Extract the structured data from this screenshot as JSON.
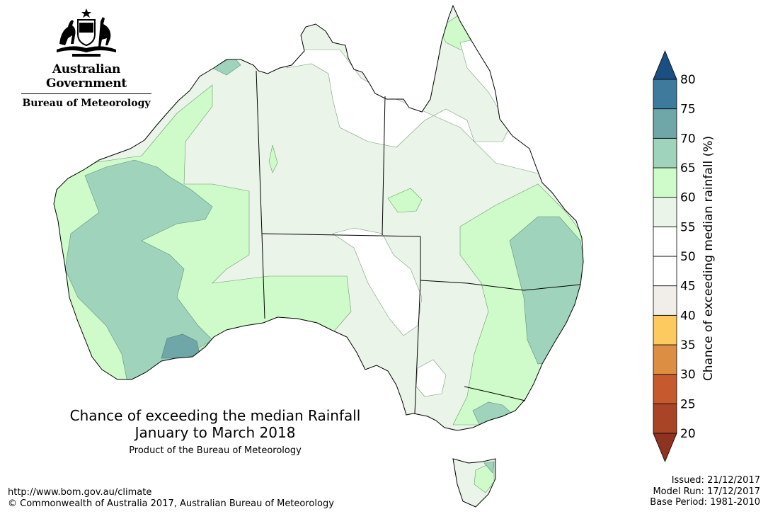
{
  "header": {
    "government": "Australian Government",
    "bureau": "Bureau of Meteorology"
  },
  "map": {
    "title_line1": "Chance of exceeding the median Rainfall",
    "title_line2": "January to March 2018",
    "subtitle": "Product of the Bureau of Meteorology"
  },
  "legend": {
    "label": "Chance of exceeding median rainfall (%)",
    "ticks": [
      "20",
      "25",
      "30",
      "35",
      "40",
      "45",
      "50",
      "55",
      "60",
      "65",
      "70",
      "75",
      "80"
    ],
    "colors": [
      "#a94426",
      "#c6592e",
      "#dc8f42",
      "#fdca60",
      "#f1ede9",
      "#ffffff",
      "#ffffff",
      "#eaf4e8",
      "#cffbca",
      "#9fd3bb",
      "#6fa6a8",
      "#3e7a9c",
      "#1b4f82"
    ]
  },
  "footer": {
    "url": "http://www.bom.gov.au/climate",
    "copyright": "© Commonwealth of Australia 2017, Australian Bureau of Meteorology",
    "issued": "Issued: 21/12/2017",
    "model_run": "Model Run: 17/12/2017",
    "base_period": "Base Period: 1981-2010"
  }
}
